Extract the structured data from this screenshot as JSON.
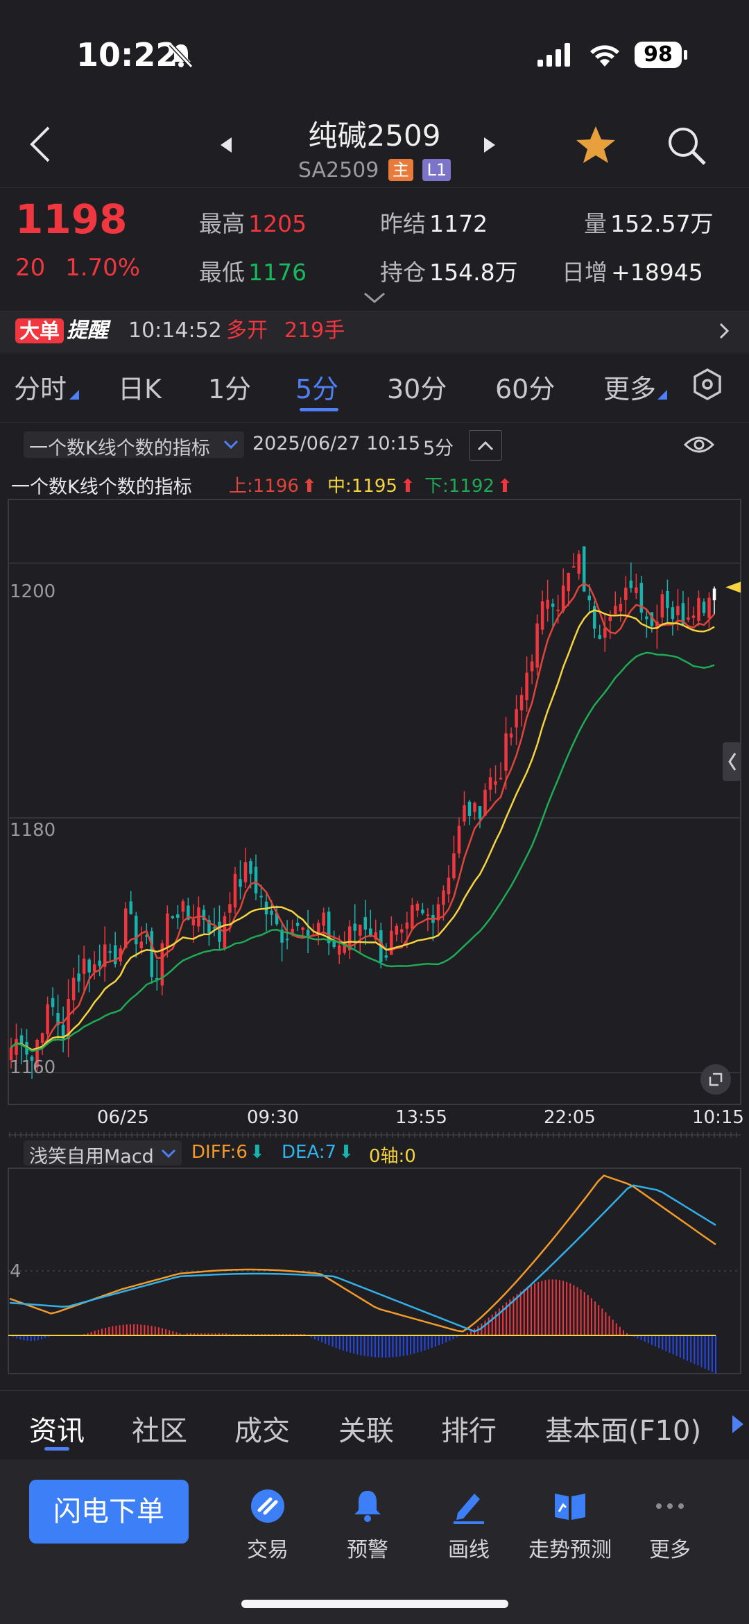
{
  "status_bar": {
    "time": "10:22",
    "battery": "98"
  },
  "header": {
    "title": "纯碱2509",
    "code": "SA2509",
    "tag_main": "主",
    "tag_level": "L1"
  },
  "quote": {
    "price": "1198",
    "change": "20",
    "change_pct": "1.70%",
    "high_label": "最高",
    "high": "1205",
    "low_label": "最低",
    "low": "1176",
    "prev_settle_label": "昨结",
    "prev_settle": "1172",
    "open_interest_label": "持仓",
    "open_interest": "154.8万",
    "volume_label": "量",
    "volume": "152.57万",
    "daily_increase_label": "日增",
    "daily_increase": "+18945"
  },
  "alert": {
    "badge1": "大单",
    "badge2": "提醒",
    "time": "10:14:52",
    "action": "多开",
    "amount": "219手"
  },
  "period_tabs": [
    "分时",
    "日K",
    "1分",
    "5分",
    "30分",
    "60分",
    "更多"
  ],
  "active_period": "5分",
  "indicator_bar": {
    "selector": "一个数K线个数的指标",
    "datetime": "2025/06/27 10:15",
    "period": "5分"
  },
  "indicator_legend": {
    "name": "一个数K线个数的指标",
    "upper": "上:1196",
    "middle": "中:1195",
    "lower": "下:1192"
  },
  "macd_legend": {
    "selector": "浅笑自用Macd",
    "diff": "DIFF:6",
    "dea": "DEA:7",
    "zero": "0轴:0"
  },
  "colors": {
    "up": "#f0363e",
    "down": "#19b3ad",
    "accent": "#4f7ff5",
    "upper_line": "#e0443a",
    "middle_line": "#f5d440",
    "lower_line": "#1faa55",
    "diff_line": "#f39a2b",
    "dea_line": "#32b0e8"
  },
  "chart_data": [
    {
      "type": "candlestick",
      "y_ticks": [
        "1200",
        "1180",
        "1160"
      ],
      "ylim": [
        1157.5,
        1205
      ],
      "x_ticks": [
        "06/25",
        "09:30",
        "13:55",
        "22:05",
        "10:15"
      ],
      "last_price": 1198,
      "series": [
        {
          "name": "上",
          "last": 1196
        },
        {
          "name": "中",
          "last": 1195
        },
        {
          "name": "下",
          "last": 1192
        }
      ],
      "close_path": [
        1162,
        1163,
        1161,
        1164,
        1165,
        1163,
        1167,
        1169,
        1168,
        1170,
        1169,
        1172,
        1171,
        1170,
        1167,
        1172,
        1173,
        1172,
        1173,
        1172,
        1170,
        1174,
        1175,
        1176,
        1174,
        1172,
        1171,
        1171,
        1173,
        1170,
        1172,
        1170,
        1170,
        1171,
        1172,
        1171,
        1169,
        1171,
        1170,
        1173,
        1172,
        1173,
        1175,
        1178,
        1181,
        1180,
        1183,
        1183,
        1186,
        1188,
        1192,
        1195,
        1198,
        1197,
        1199,
        1200,
        1196,
        1195,
        1197,
        1196,
        1199,
        1197,
        1195,
        1198,
        1196,
        1196,
        1197,
        1197,
        1198
      ]
    },
    {
      "type": "line",
      "y_ticks": [
        "4"
      ],
      "series": [
        {
          "name": "DIFF",
          "last": 6
        },
        {
          "name": "DEA",
          "last": 7
        }
      ]
    }
  ],
  "bottom_tabs": [
    "资讯",
    "社区",
    "成交",
    "关联",
    "排行",
    "基本面(F10)"
  ],
  "footer": {
    "flash_order": "闪电下单",
    "items": [
      "交易",
      "预警",
      "画线",
      "走势预测",
      "更多"
    ]
  }
}
